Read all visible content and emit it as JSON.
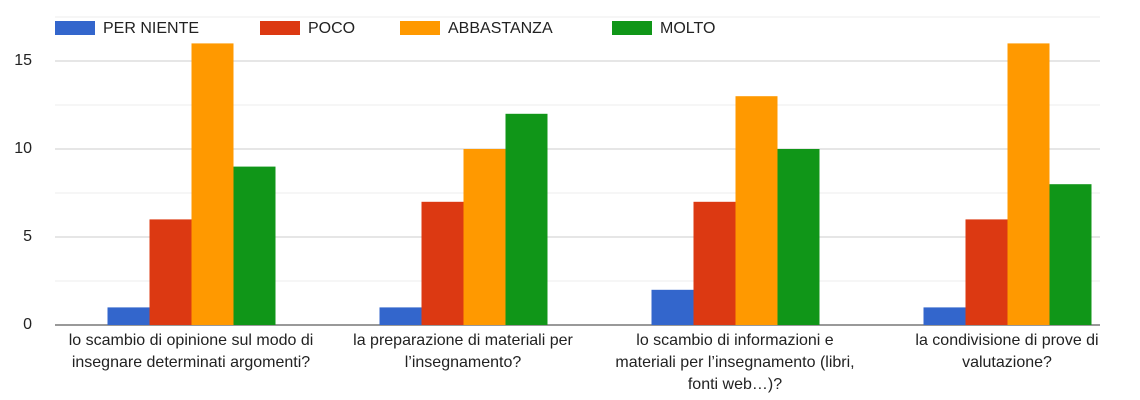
{
  "chart_data": {
    "type": "bar",
    "categories": [
      "lo scambio di opinione sul modo di insegnare determinati argomenti?",
      "la preparazione di materiali per l’insegnamento?",
      "lo scambio di informazioni e materiali per l’insegnamento (libri, fonti web…)?",
      "la condivisione di prove di valutazione?"
    ],
    "series": [
      {
        "name": "PER NIENTE",
        "color": "#3366cc",
        "values": [
          1,
          1,
          2,
          1
        ]
      },
      {
        "name": "POCO",
        "color": "#dc3912",
        "values": [
          6,
          7,
          7,
          6
        ]
      },
      {
        "name": "ABBASTANZA",
        "color": "#ff9900",
        "values": [
          16,
          10,
          13,
          16
        ]
      },
      {
        "name": "MOLTO",
        "color": "#109618",
        "values": [
          9,
          12,
          10,
          8
        ]
      }
    ],
    "ylim": [
      0,
      17.5
    ],
    "yticks": [
      0,
      5,
      10,
      15
    ],
    "minor_yticks": [
      2.5,
      7.5,
      12.5,
      17.5
    ],
    "grid": true,
    "legend": "top"
  }
}
